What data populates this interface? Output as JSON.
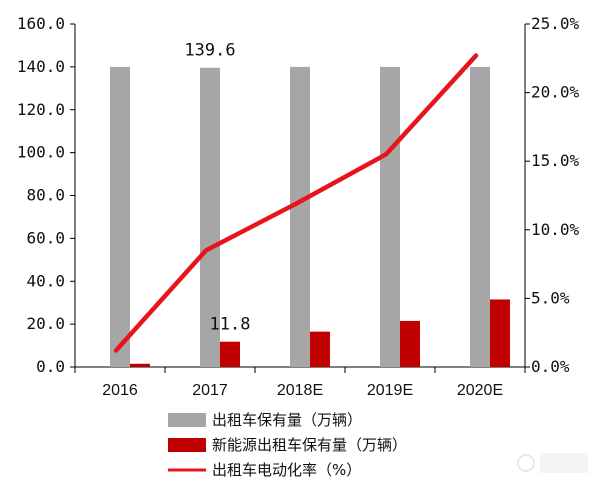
{
  "chart_data": {
    "type": "bar",
    "categories": [
      "2016",
      "2017",
      "2018E",
      "2019E",
      "2020E"
    ],
    "series": [
      {
        "name": "出租车保有量（万辆）",
        "kind": "bar",
        "axis": "left",
        "color": "#a6a6a6",
        "values": [
          140.0,
          139.6,
          140.0,
          140.0,
          140.0
        ]
      },
      {
        "name": "新能源出租车保有量（万辆）",
        "kind": "bar",
        "axis": "left",
        "color": "#c00000",
        "values": [
          1.5,
          11.8,
          16.5,
          21.5,
          31.5
        ]
      },
      {
        "name": "出租车电动化率（%）",
        "kind": "line",
        "axis": "right",
        "color": "#e8141b",
        "values": [
          1.2,
          8.5,
          11.9,
          15.5,
          22.7
        ]
      }
    ],
    "ylim": [
      0,
      160
    ],
    "y2lim": [
      0,
      25
    ],
    "yticks": [
      "160.0",
      "140.0",
      "120.0",
      "100.0",
      "80.0",
      "60.0",
      "40.0",
      "20.0",
      "0.0"
    ],
    "y2ticks": [
      "25.0%",
      "20.0%",
      "15.0%",
      "10.0%",
      "5.0%",
      "0.0%"
    ],
    "data_labels": [
      {
        "series": 0,
        "index": 1,
        "text": "139.6"
      },
      {
        "series": 1,
        "index": 1,
        "text": "11.8"
      }
    ],
    "legend_position": "bottom",
    "grid": false
  }
}
